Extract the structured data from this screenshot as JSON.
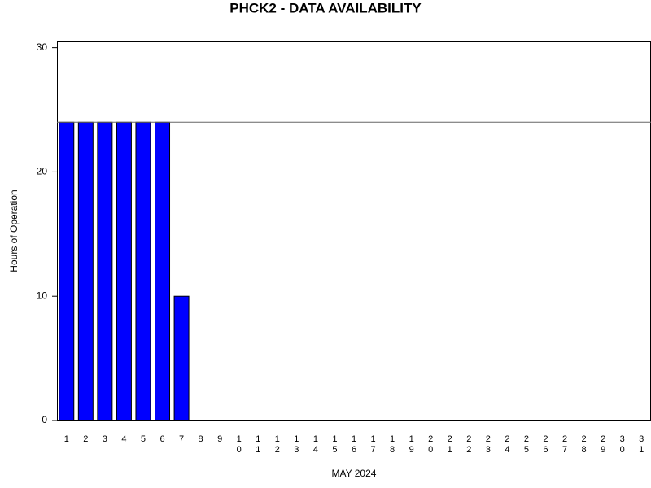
{
  "chart_data": {
    "type": "bar",
    "title": "PHCK2 - DATA AVAILABILITY",
    "x_label": "MAY 2024",
    "y_label": "Hours of Operation",
    "categories": [
      "1",
      "2",
      "3",
      "4",
      "5",
      "6",
      "7",
      "8",
      "9",
      "10",
      "11",
      "12",
      "13",
      "14",
      "15",
      "16",
      "17",
      "18",
      "19",
      "20",
      "21",
      "22",
      "23",
      "24",
      "25",
      "26",
      "27",
      "28",
      "29",
      "30",
      "31"
    ],
    "values": [
      24,
      24,
      24,
      24,
      24,
      24,
      10,
      0,
      0,
      0,
      0,
      0,
      0,
      0,
      0,
      0,
      0,
      0,
      0,
      0,
      0,
      0,
      0,
      0,
      0,
      0,
      0,
      0,
      0,
      0,
      0
    ],
    "color": "#0000ff",
    "reference_line": 24,
    "ylim": [
      0,
      30.5
    ],
    "yticks": [
      0,
      10,
      20,
      30
    ]
  }
}
